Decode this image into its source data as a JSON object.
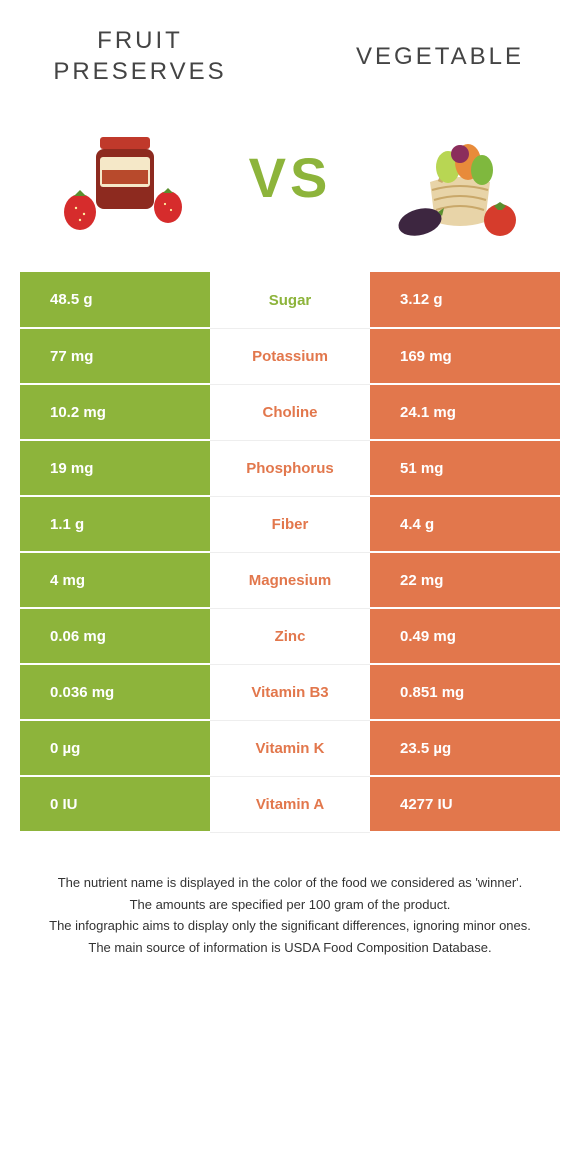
{
  "header": {
    "left_title": "FRUIT PRESERVES",
    "right_title": "VEGETABLE",
    "vs_text": "VS"
  },
  "colors": {
    "left": "#8db43b",
    "right": "#e2774c",
    "vs": "#8db43b",
    "text": "#333333"
  },
  "rows": [
    {
      "left": "48.5 g",
      "label": "Sugar",
      "right": "3.12 g",
      "winner": "left"
    },
    {
      "left": "77 mg",
      "label": "Potassium",
      "right": "169 mg",
      "winner": "right"
    },
    {
      "left": "10.2 mg",
      "label": "Choline",
      "right": "24.1 mg",
      "winner": "right"
    },
    {
      "left": "19 mg",
      "label": "Phosphorus",
      "right": "51 mg",
      "winner": "right"
    },
    {
      "left": "1.1 g",
      "label": "Fiber",
      "right": "4.4 g",
      "winner": "right"
    },
    {
      "left": "4 mg",
      "label": "Magnesium",
      "right": "22 mg",
      "winner": "right"
    },
    {
      "left": "0.06 mg",
      "label": "Zinc",
      "right": "0.49 mg",
      "winner": "right"
    },
    {
      "left": "0.036 mg",
      "label": "Vitamin B3",
      "right": "0.851 mg",
      "winner": "right"
    },
    {
      "left": "0 µg",
      "label": "Vitamin K",
      "right": "23.5 µg",
      "winner": "right"
    },
    {
      "left": "0 IU",
      "label": "Vitamin A",
      "right": "4277 IU",
      "winner": "right"
    }
  ],
  "footer": {
    "line1": "The nutrient name is displayed in the color of the food we considered as 'winner'.",
    "line2": "The amounts are specified per 100 gram of the product.",
    "line3": "The infographic aims to display only the significant differences, ignoring minor ones.",
    "line4": "The main source of information is USDA Food Composition Database."
  }
}
